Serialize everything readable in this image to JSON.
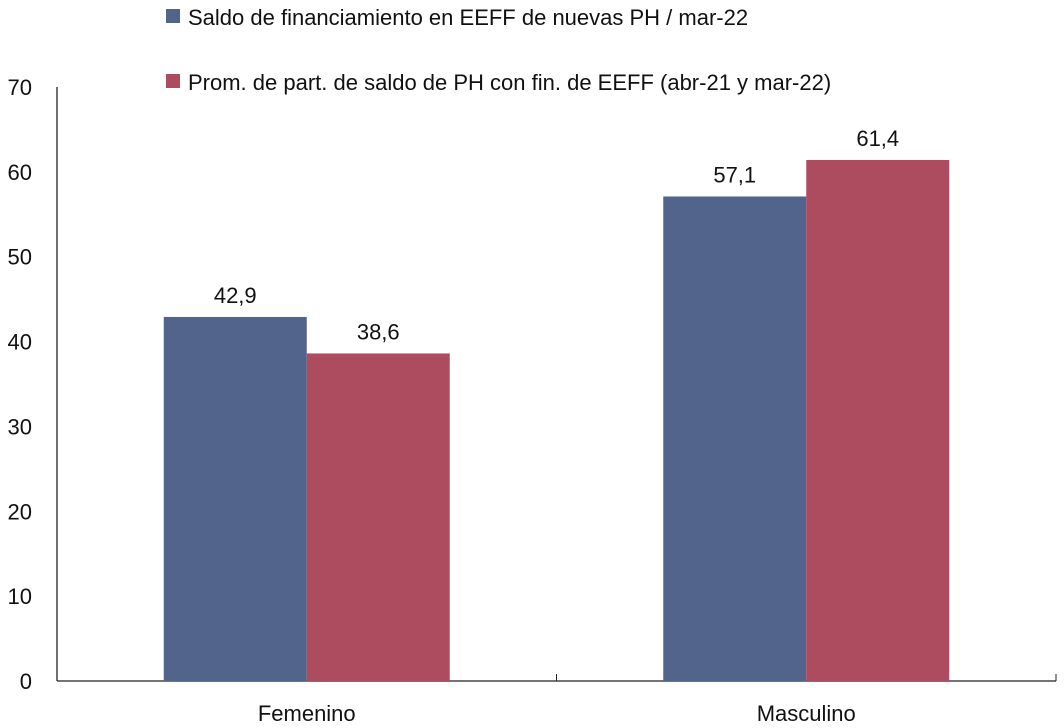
{
  "chart_data": {
    "type": "bar",
    "categories": [
      "Femenino",
      "Masculino"
    ],
    "series": [
      {
        "name": "Saldo de financiamiento en EEFF de nuevas PH / mar-22",
        "values": [
          42.9,
          57.1
        ],
        "labels": [
          "42,9",
          "57,1"
        ],
        "color": "#52648c"
      },
      {
        "name": "Prom. de part. de saldo de PH con fin. de EEFF (abr-21 y mar-22)",
        "values": [
          38.6,
          61.4
        ],
        "labels": [
          "38,6",
          "61,4"
        ],
        "color": "#ae4c5f"
      }
    ],
    "ylim": [
      0,
      70
    ],
    "yticks": [
      0,
      10,
      20,
      30,
      40,
      50,
      60,
      70
    ],
    "title": "",
    "xlabel": "",
    "ylabel": "",
    "grid": false,
    "legend": "top"
  }
}
